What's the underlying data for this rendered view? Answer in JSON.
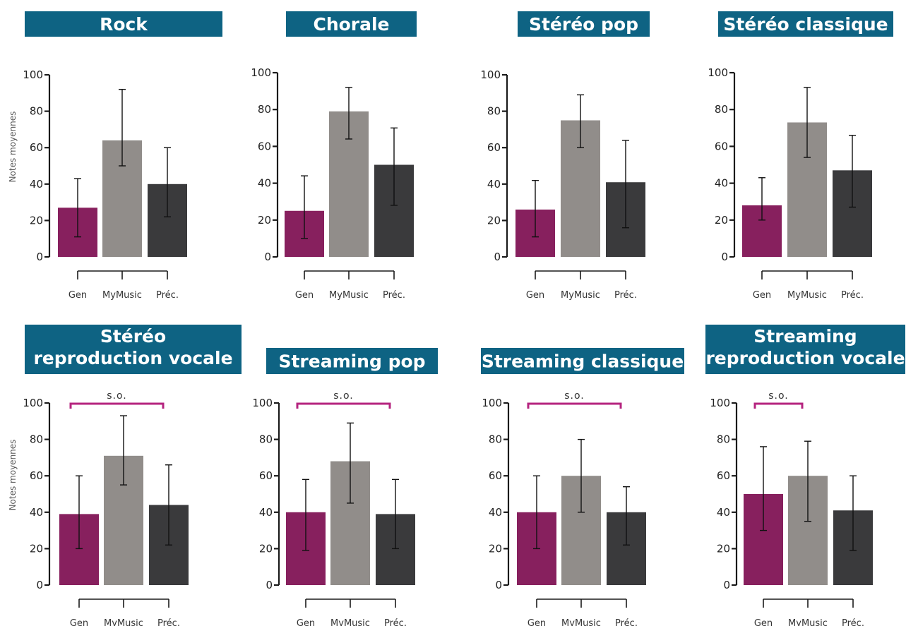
{
  "colors": {
    "title_bg": "#0e6383",
    "gen": "#87205e",
    "mymusic": "#918d8a",
    "prec": "#3a3a3c",
    "significance": "#b5247f",
    "axis": "#1a1a1a"
  },
  "chart_data": [
    {
      "type": "bar",
      "title": [
        "Rock"
      ],
      "ylabel": "Notes moyennes",
      "ylim": [
        0,
        100
      ],
      "yticks": [
        0,
        20,
        40,
        60,
        80,
        100
      ],
      "categories": [
        "Gen",
        "MyMusic",
        "Préc."
      ],
      "values": [
        27,
        64,
        40
      ],
      "error_low": [
        11,
        50,
        22
      ],
      "error_high": [
        43,
        92,
        60
      ],
      "significance": null
    },
    {
      "type": "bar",
      "title": [
        "Chorale"
      ],
      "ylabel": "",
      "ylim": [
        0,
        100
      ],
      "yticks": [
        0,
        20,
        40,
        60,
        80,
        100
      ],
      "categories": [
        "Gen",
        "MyMusic",
        "Préc."
      ],
      "values": [
        25,
        79,
        50
      ],
      "error_low": [
        10,
        64,
        28
      ],
      "error_high": [
        44,
        92,
        70
      ],
      "significance": null
    },
    {
      "type": "bar",
      "title": [
        "Stéréo pop"
      ],
      "ylabel": "",
      "ylim": [
        0,
        100
      ],
      "yticks": [
        0,
        20,
        40,
        60,
        80,
        100
      ],
      "categories": [
        "Gen",
        "MyMusic",
        "Préc."
      ],
      "values": [
        26,
        75,
        41
      ],
      "error_low": [
        11,
        60,
        16
      ],
      "error_high": [
        42,
        89,
        64
      ],
      "significance": null
    },
    {
      "type": "bar",
      "title": [
        "Stéréo classique"
      ],
      "ylabel": "",
      "ylim": [
        0,
        100
      ],
      "yticks": [
        0,
        20,
        40,
        60,
        80,
        100
      ],
      "categories": [
        "Gen",
        "MyMusic",
        "Préc."
      ],
      "values": [
        28,
        73,
        47
      ],
      "error_low": [
        20,
        54,
        27
      ],
      "error_high": [
        43,
        92,
        66
      ],
      "significance": null
    },
    {
      "type": "bar",
      "title": [
        "Stéréo",
        "reproduction vocale"
      ],
      "ylabel": "Notes moyennes",
      "ylim": [
        0,
        100
      ],
      "yticks": [
        0,
        20,
        40,
        60,
        80,
        100
      ],
      "categories": [
        "Gen",
        "MyMusic",
        "Préc."
      ],
      "values": [
        39,
        71,
        44
      ],
      "error_low": [
        20,
        55,
        22
      ],
      "error_high": [
        60,
        93,
        66
      ],
      "significance": {
        "label": "s.o.",
        "from": "Gen",
        "to": "Préc."
      }
    },
    {
      "type": "bar",
      "title": [
        "Streaming pop"
      ],
      "ylabel": "",
      "ylim": [
        0,
        100
      ],
      "yticks": [
        0,
        20,
        40,
        60,
        80,
        100
      ],
      "categories": [
        "Gen",
        "MyMusic",
        "Préc."
      ],
      "values": [
        40,
        68,
        39
      ],
      "error_low": [
        19,
        45,
        20
      ],
      "error_high": [
        58,
        89,
        58
      ],
      "significance": {
        "label": "s.o.",
        "from": "Gen",
        "to": "Préc."
      }
    },
    {
      "type": "bar",
      "title": [
        "Streaming classique"
      ],
      "ylabel": "",
      "ylim": [
        0,
        100
      ],
      "yticks": [
        0,
        20,
        40,
        60,
        80,
        100
      ],
      "categories": [
        "Gen",
        "MyMusic",
        "Préc."
      ],
      "values": [
        40,
        60,
        40
      ],
      "error_low": [
        20,
        40,
        22
      ],
      "error_high": [
        60,
        80,
        54
      ],
      "significance": {
        "label": "s.o.",
        "from": "Gen",
        "to": "Préc."
      }
    },
    {
      "type": "bar",
      "title": [
        "Streaming",
        "reproduction vocale"
      ],
      "ylabel": "",
      "ylim": [
        0,
        100
      ],
      "yticks": [
        0,
        20,
        40,
        60,
        80,
        100
      ],
      "categories": [
        "Gen",
        "MyMusic",
        "Préc."
      ],
      "values": [
        50,
        60,
        41
      ],
      "error_low": [
        30,
        35,
        19
      ],
      "error_high": [
        76,
        79,
        60
      ],
      "significance": {
        "label": "s.o.",
        "from": "Gen",
        "to": "MyMusic"
      }
    }
  ]
}
